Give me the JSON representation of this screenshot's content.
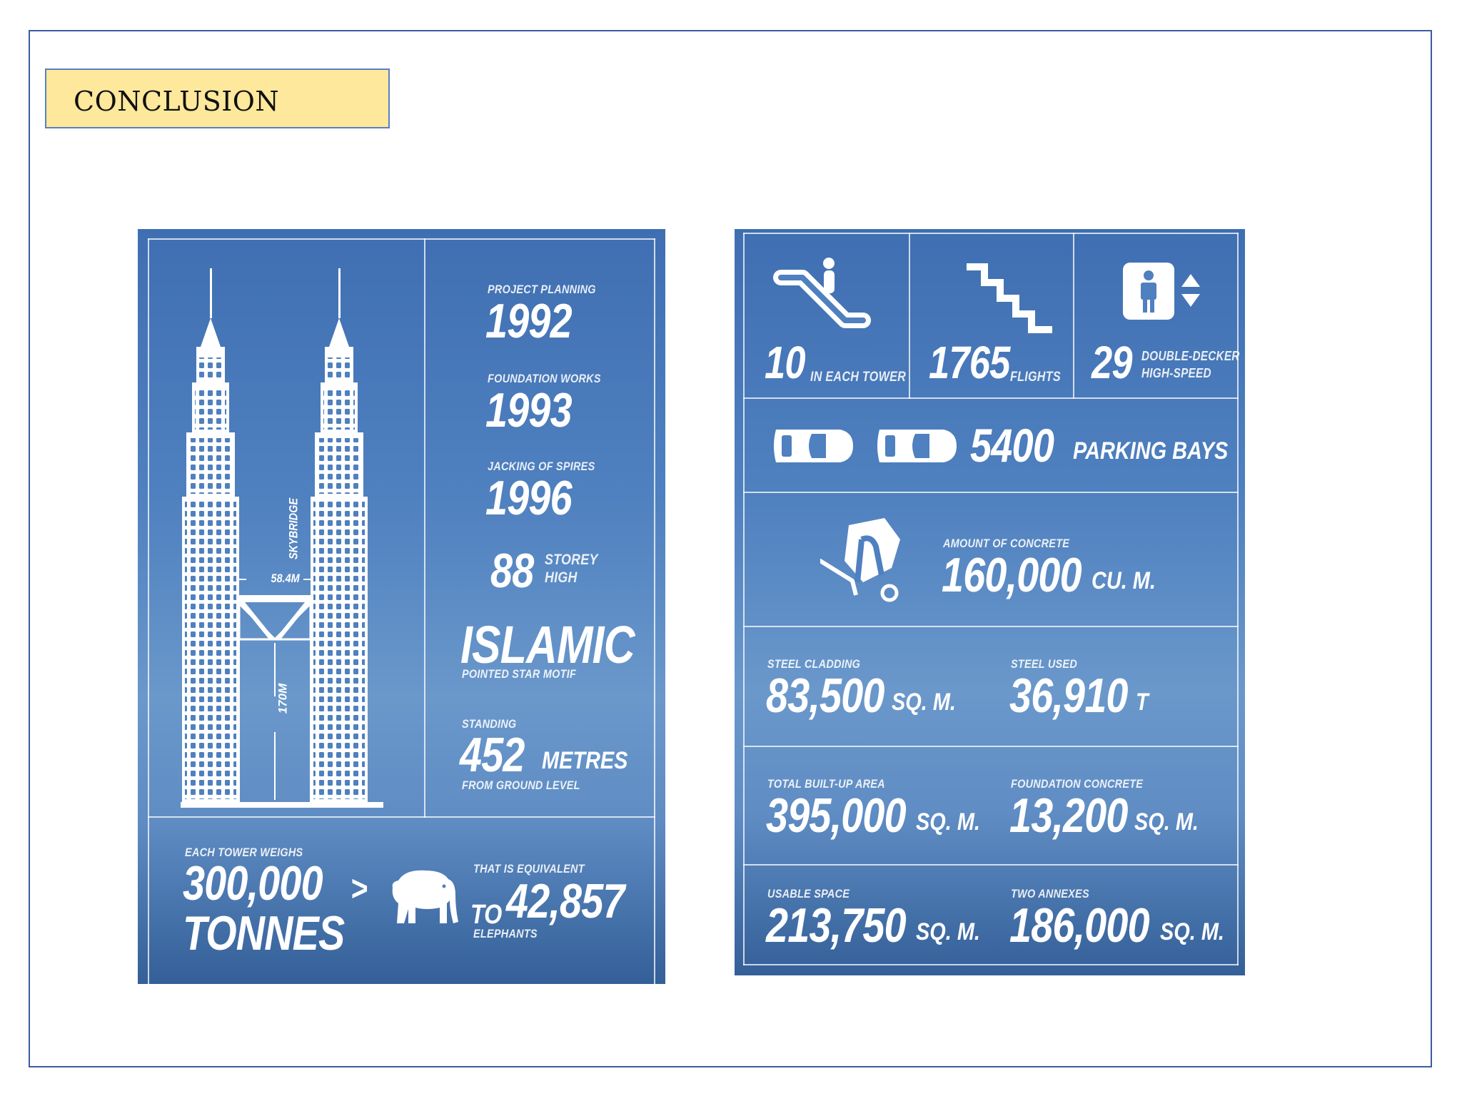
{
  "slide": {
    "title": "CONCLUSION"
  },
  "left_panel": {
    "tower": {
      "skybridge_label": "SKYBRIDGE",
      "width_label": "58.4M",
      "height_label": "170M"
    },
    "project_planning": {
      "label": "PROJECT PLANNING",
      "value": "1992"
    },
    "foundation_works": {
      "label": "FOUNDATION WORKS",
      "value": "1993"
    },
    "jacking_of_spires": {
      "label": "JACKING OF SPIRES",
      "value": "1996"
    },
    "storeys": {
      "value": "88",
      "unit_top": "STOREY",
      "unit_bottom": "HIGH"
    },
    "motif": {
      "value": "ISLAMIC",
      "caption": "POINTED STAR MOTIF"
    },
    "standing": {
      "label": "STANDING",
      "value": "452",
      "unit": "METRES",
      "caption": "FROM GROUND LEVEL"
    },
    "weight": {
      "label": "EACH TOWER WEIGHS",
      "value": "300,000",
      "unit": "TONNES",
      "comparator": ">"
    },
    "equivalent": {
      "label": "THAT IS EQUIVALENT",
      "prefix": "TO",
      "value": "42,857",
      "caption": "ELEPHANTS"
    }
  },
  "right_panel": {
    "escalators": {
      "value": "10",
      "unit": "IN EACH TOWER",
      "icon": "escalator-icon"
    },
    "stairs": {
      "value": "1765",
      "unit": "FLIGHTS",
      "icon": "stairs-icon"
    },
    "lifts": {
      "value": "29",
      "unit_top": "DOUBLE-DECKER",
      "unit_bottom": "HIGH-SPEED",
      "icon": "elevator-icon"
    },
    "parking": {
      "value": "5400",
      "unit": "PARKING BAYS",
      "icon": "car-icon"
    },
    "concrete": {
      "label": "AMOUNT OF CONCRETE",
      "value": "160,000",
      "unit": "CU. M.",
      "icon": "concrete-mixer-icon"
    },
    "steel_cladding": {
      "label": "STEEL CLADDING",
      "value": "83,500",
      "unit": "SQ. M."
    },
    "steel_used": {
      "label": "STEEL USED",
      "value": "36,910",
      "unit": "T"
    },
    "built_up_area": {
      "label": "TOTAL BUILT-UP AREA",
      "value": "395,000",
      "unit": "SQ. M."
    },
    "foundation_concrete": {
      "label": "FOUNDATION CONCRETE",
      "value": "13,200",
      "unit": "SQ. M."
    },
    "usable_space": {
      "label": "USABLE SPACE",
      "value": "213,750",
      "unit": "SQ. M."
    },
    "annexes": {
      "label": "TWO ANNEXES",
      "value": "186,000",
      "unit": "SQ. M."
    }
  }
}
